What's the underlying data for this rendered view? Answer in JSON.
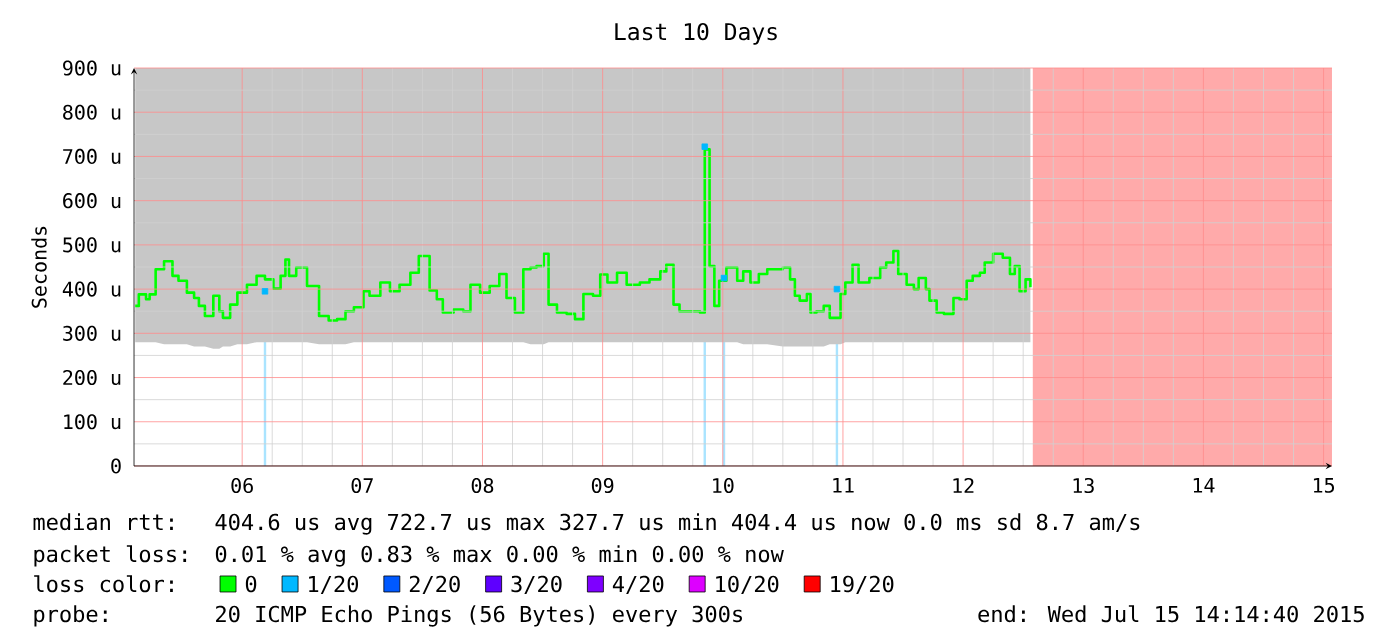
{
  "chart_data": {
    "type": "step",
    "title": "Last 10 Days",
    "ylabel": "Seconds",
    "legend_title": "loss color:",
    "xlim": [
      5.1,
      15.07
    ],
    "ylim": [
      0,
      900
    ],
    "xticks": [
      {
        "value": 6,
        "label": "06"
      },
      {
        "value": 7,
        "label": "07"
      },
      {
        "value": 8,
        "label": "08"
      },
      {
        "value": 9,
        "label": "09"
      },
      10,
      11,
      12,
      13,
      14,
      15
    ],
    "yticks": [
      0,
      {
        "value": 100,
        "label": "100 u"
      },
      {
        "value": 200,
        "label": "200 u"
      },
      {
        "value": 300,
        "label": "300 u"
      },
      {
        "value": 400,
        "label": "400 u"
      },
      {
        "value": 500,
        "label": "500 u"
      },
      {
        "value": 600,
        "label": "600 u"
      },
      {
        "value": 700,
        "label": "700 u"
      },
      {
        "value": 800,
        "label": "800 u"
      },
      {
        "value": 900,
        "label": "900 u"
      }
    ],
    "grid": true,
    "legend": "bottom",
    "series": [
      {
        "name": "0",
        "color": "#00ff00",
        "x": [
          5.11,
          5.14,
          5.2,
          5.23,
          5.28,
          5.35,
          5.42,
          5.47,
          5.54,
          5.6,
          5.64,
          5.69,
          5.76,
          5.81,
          5.84,
          5.9,
          5.96,
          6.04,
          6.12,
          6.19,
          6.26,
          6.32,
          6.36,
          6.39,
          6.45,
          6.54,
          6.64,
          6.72,
          6.79,
          6.86,
          6.93,
          7.01,
          7.06,
          7.15,
          7.23,
          7.31,
          7.4,
          7.47,
          7.56,
          7.62,
          7.67,
          7.76,
          7.84,
          7.9,
          7.98,
          8.06,
          8.14,
          8.2,
          8.27,
          8.34,
          8.4,
          8.45,
          8.51,
          8.55,
          8.62,
          8.7,
          8.77,
          8.84,
          8.92,
          8.98,
          9.04,
          9.12,
          9.2,
          9.31,
          9.39,
          9.48,
          9.53,
          9.59,
          9.64,
          9.81,
          9.85,
          9.89,
          9.93,
          9.97,
          10.03,
          10.12,
          10.17,
          10.23,
          10.3,
          10.37,
          10.5,
          10.56,
          10.6,
          10.64,
          10.7,
          10.73,
          10.78,
          10.84,
          10.89,
          10.98,
          11.02,
          11.08,
          11.13,
          11.22,
          11.31,
          11.36,
          11.42,
          11.46,
          11.53,
          11.59,
          11.63,
          11.69,
          11.72,
          11.78,
          11.84,
          11.92,
          11.97,
          12.03,
          12.08,
          12.14,
          12.18,
          12.25,
          12.33,
          12.39,
          12.43,
          12.47,
          12.52,
          12.56
        ],
        "values": [
          362,
          388,
          377,
          388,
          445,
          463,
          430,
          419,
          392,
          380,
          362,
          339,
          385,
          350,
          335,
          365,
          392,
          410,
          430,
          422,
          401,
          430,
          467,
          430,
          449,
          407,
          339,
          329,
          332,
          350,
          359,
          395,
          385,
          415,
          395,
          410,
          437,
          475,
          397,
          377,
          347,
          354,
          350,
          410,
          392,
          407,
          434,
          380,
          347,
          445,
          449,
          452,
          480,
          365,
          347,
          344,
          332,
          389,
          385,
          433,
          415,
          437,
          410,
          415,
          422,
          440,
          455,
          365,
          350,
          347,
          716,
          452,
          362,
          419,
          449,
          419,
          440,
          415,
          434,
          445,
          449,
          422,
          385,
          374,
          389,
          347,
          350,
          362,
          335,
          389,
          415,
          455,
          415,
          425,
          449,
          460,
          486,
          434,
          410,
          400,
          425,
          400,
          374,
          347,
          344,
          380,
          377,
          419,
          430,
          437,
          460,
          480,
          471,
          434,
          452,
          395,
          422,
          404
        ],
        "lower": [
          280,
          280,
          280,
          280,
          280,
          275,
          275,
          275,
          275,
          270,
          270,
          270,
          265,
          265,
          270,
          270,
          275,
          275,
          280,
          280,
          280,
          280,
          280,
          280,
          280,
          280,
          275,
          275,
          275,
          275,
          280,
          280,
          280,
          280,
          280,
          280,
          280,
          280,
          280,
          280,
          280,
          280,
          280,
          280,
          280,
          280,
          280,
          280,
          280,
          280,
          275,
          275,
          275,
          280,
          280,
          280,
          280,
          280,
          280,
          280,
          280,
          280,
          280,
          280,
          280,
          280,
          280,
          280,
          280,
          280,
          280,
          280,
          280,
          280,
          280,
          280,
          275,
          275,
          275,
          275,
          270,
          270,
          270,
          270,
          270,
          270,
          270,
          270,
          275,
          275,
          280,
          280,
          280,
          280,
          280,
          280,
          280,
          280,
          280,
          280,
          280,
          280,
          280,
          280,
          280,
          280,
          280,
          280,
          280,
          280,
          280,
          280,
          280,
          280,
          280,
          280,
          280,
          280
        ],
        "upper": [
          900,
          900,
          900,
          900,
          900,
          900,
          900,
          900,
          900,
          900,
          900,
          900,
          900,
          900,
          900,
          900,
          900,
          900,
          900,
          900,
          900,
          900,
          900,
          900,
          900,
          900,
          900,
          900,
          900,
          900,
          900,
          900,
          900,
          900,
          900,
          900,
          900,
          900,
          900,
          900,
          900,
          900,
          900,
          900,
          900,
          900,
          900,
          900,
          900,
          900,
          900,
          900,
          900,
          900,
          900,
          900,
          900,
          900,
          900,
          900,
          900,
          900,
          900,
          900,
          900,
          900,
          900,
          900,
          900,
          900,
          900,
          900,
          900,
          900,
          900,
          900,
          900,
          900,
          900,
          900,
          900,
          900,
          900,
          900,
          900,
          900,
          900,
          900,
          900,
          900,
          900,
          900,
          900,
          900,
          900,
          900,
          900,
          900,
          900,
          900,
          900,
          900,
          900,
          900,
          900,
          900,
          900,
          900,
          900,
          900,
          900,
          900,
          900,
          900,
          900,
          900,
          900,
          900
        ]
      },
      {
        "name": "1/20",
        "type": "scatter",
        "color": "#00b8ff",
        "marker": "square",
        "x": [
          6.19,
          9.85,
          10.01,
          10.95
        ],
        "values": [
          395,
          722,
          425,
          400
        ]
      },
      {
        "name": "2/20",
        "type": "scatter",
        "color": "#0059ff"
      },
      {
        "name": "3/20",
        "type": "scatter",
        "color": "#5e00ff"
      },
      {
        "name": "4/20",
        "type": "scatter",
        "color": "#7e00ff"
      },
      {
        "name": "10/20",
        "type": "scatter",
        "color": "#dd00ff"
      },
      {
        "name": "19/20",
        "type": "scatter",
        "color": "#ff0000"
      }
    ],
    "ref_lines": [
      {
        "axis": "x",
        "value": 6.19,
        "color": "#aae4ff"
      },
      {
        "axis": "x",
        "value": 9.85,
        "color": "#aae4ff"
      },
      {
        "axis": "x",
        "value": 10.01,
        "color": "#aae4ff"
      },
      {
        "axis": "x",
        "value": 10.95,
        "color": "#aae4ff"
      }
    ],
    "bands": [
      {
        "axis": "x",
        "from": 12.58,
        "to": 15.07,
        "color": "#ffaaaa"
      }
    ],
    "annotations": [
      "median rtt:",
      "404.6 us avg  722.7 us max  327.7 us min  404.4 us now  0.0 ms sd  8.7   am/s",
      "packet loss:",
      "0.01 % avg  0.83 % max  0.00 % min  0.00 % now",
      "probe:",
      "20 ICMP Echo Pings (56 Bytes) every 300s",
      "end: Wed Jul 15 14:14:40 2015"
    ]
  }
}
